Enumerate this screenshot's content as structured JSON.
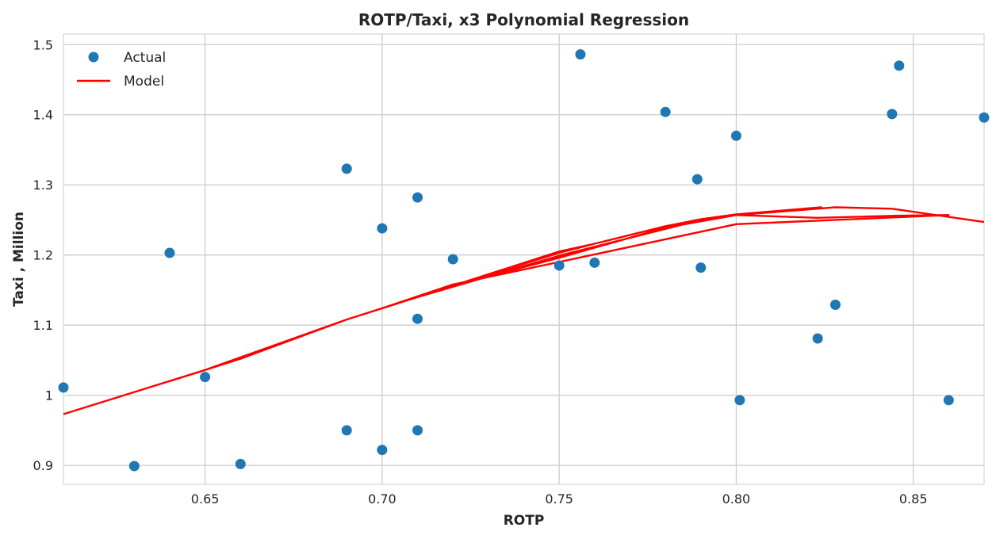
{
  "chart_data": {
    "type": "scatter",
    "title": "ROTP/Taxi, x3 Polynomial Regression",
    "xlabel": "ROTP",
    "ylabel": "Taxi , Million",
    "xlim": [
      0.61,
      0.87
    ],
    "ylim": [
      0.873,
      1.515
    ],
    "xticks": [
      0.65,
      0.7,
      0.75,
      0.8,
      0.85
    ],
    "xtick_labels": [
      "0.65",
      "0.70",
      "0.75",
      "0.80",
      "0.85"
    ],
    "yticks": [
      0.9,
      1.0,
      1.1,
      1.2,
      1.3,
      1.4,
      1.5
    ],
    "ytick_labels": [
      "0.9",
      "1",
      "1.1",
      "1.2",
      "1.3",
      "1.4",
      "1.5"
    ],
    "grid": true,
    "legend": {
      "position": "top-left",
      "entries": [
        {
          "label": "Actual",
          "kind": "marker",
          "color": "#1f77b4"
        },
        {
          "label": "Model",
          "kind": "line",
          "color": "#ff0000"
        }
      ]
    },
    "series": [
      {
        "name": "Actual",
        "kind": "scatter",
        "color": "#1f77b4",
        "points": [
          [
            0.61,
            1.011
          ],
          [
            0.63,
            0.899
          ],
          [
            0.64,
            1.203
          ],
          [
            0.65,
            1.026
          ],
          [
            0.66,
            0.902
          ],
          [
            0.69,
            1.323
          ],
          [
            0.69,
            0.95
          ],
          [
            0.7,
            1.238
          ],
          [
            0.7,
            0.922
          ],
          [
            0.71,
            1.282
          ],
          [
            0.71,
            1.109
          ],
          [
            0.71,
            0.95
          ],
          [
            0.72,
            1.194
          ],
          [
            0.75,
            1.185
          ],
          [
            0.756,
            1.486
          ],
          [
            0.76,
            1.189
          ],
          [
            0.78,
            1.404
          ],
          [
            0.789,
            1.308
          ],
          [
            0.79,
            1.182
          ],
          [
            0.8,
            1.37
          ],
          [
            0.801,
            0.993
          ],
          [
            0.823,
            1.081
          ],
          [
            0.828,
            1.129
          ],
          [
            0.844,
            1.401
          ],
          [
            0.846,
            1.47
          ],
          [
            0.86,
            0.993
          ],
          [
            0.87,
            1.396
          ]
        ]
      },
      {
        "name": "Model",
        "kind": "line",
        "color": "#ff0000",
        "points": [
          [
            0.61,
            0.973
          ],
          [
            0.65,
            1.036
          ],
          [
            0.69,
            1.108
          ],
          [
            0.71,
            1.14
          ],
          [
            0.75,
            1.205
          ],
          [
            0.76,
            1.216
          ],
          [
            0.78,
            1.241
          ],
          [
            0.79,
            1.251
          ],
          [
            0.8,
            1.258
          ],
          [
            0.824,
            1.268
          ],
          [
            0.8,
            1.258
          ],
          [
            0.79,
            1.251
          ],
          [
            0.78,
            1.241
          ],
          [
            0.76,
            1.216
          ],
          [
            0.75,
            1.203
          ],
          [
            0.71,
            1.14
          ],
          [
            0.7,
            1.124
          ],
          [
            0.69,
            1.108
          ],
          [
            0.7,
            1.124
          ],
          [
            0.72,
            1.156
          ],
          [
            0.75,
            1.196
          ],
          [
            0.78,
            1.239
          ],
          [
            0.79,
            1.248
          ],
          [
            0.8,
            1.257
          ],
          [
            0.823,
            1.253
          ],
          [
            0.846,
            1.256
          ],
          [
            0.86,
            1.257
          ],
          [
            0.8,
            1.244
          ],
          [
            0.75,
            1.19
          ],
          [
            0.72,
            1.158
          ],
          [
            0.71,
            1.141
          ],
          [
            0.7,
            1.124
          ],
          [
            0.69,
            1.108
          ],
          [
            0.66,
            1.052
          ],
          [
            0.64,
            1.02
          ],
          [
            0.65,
            1.036
          ],
          [
            0.69,
            1.108
          ],
          [
            0.71,
            1.14
          ],
          [
            0.75,
            1.199
          ],
          [
            0.79,
            1.25
          ],
          [
            0.8,
            1.257
          ],
          [
            0.828,
            1.268
          ],
          [
            0.844,
            1.266
          ],
          [
            0.87,
            1.247
          ]
        ]
      }
    ]
  }
}
